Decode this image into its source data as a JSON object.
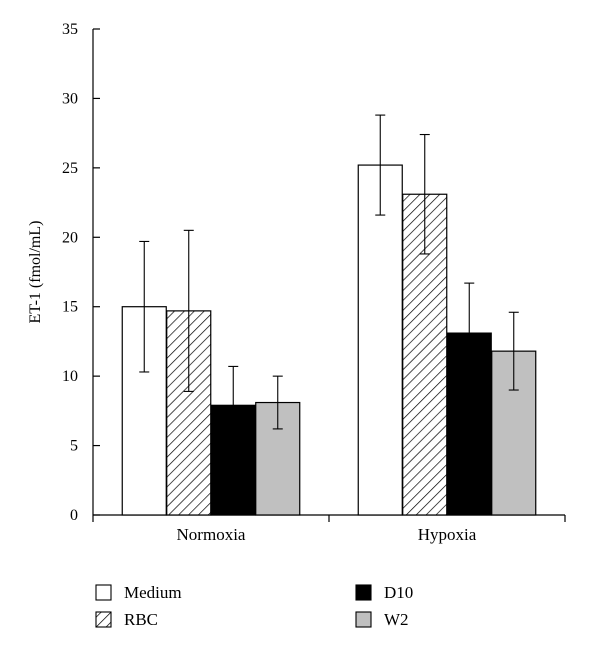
{
  "chart_data": {
    "type": "bar",
    "title": "",
    "xlabel": "",
    "ylabel": "ET-1 (fmol/mL)",
    "ylim": [
      0,
      35
    ],
    "yticks": [
      0,
      5,
      10,
      15,
      20,
      25,
      30,
      35
    ],
    "grid": false,
    "legend_position": "bottom",
    "categories": [
      "Normoxia",
      "Hypoxia"
    ],
    "series": [
      {
        "name": "Medium",
        "fill": "white",
        "values": [
          15.0,
          25.2
        ],
        "errors": [
          4.7,
          3.6
        ]
      },
      {
        "name": "RBC",
        "fill": "hatch",
        "values": [
          14.7,
          23.1
        ],
        "errors": [
          5.8,
          4.3
        ]
      },
      {
        "name": "D10",
        "fill": "black",
        "values": [
          7.9,
          13.1
        ],
        "errors": [
          2.8,
          3.6
        ]
      },
      {
        "name": "W2",
        "fill": "gray",
        "values": [
          8.1,
          11.8
        ],
        "errors": [
          1.9,
          2.8
        ]
      }
    ]
  },
  "colors": {
    "white": "#ffffff",
    "black": "#000000",
    "gray": "#c0c0c0",
    "outline": "#000000"
  }
}
